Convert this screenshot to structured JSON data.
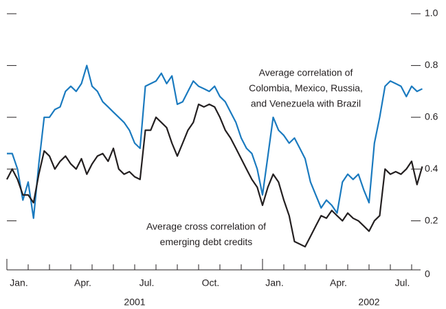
{
  "chart_data": {
    "type": "line",
    "x": [
      0,
      0.25,
      0.5,
      0.75,
      1,
      1.25,
      1.5,
      1.75,
      2,
      2.25,
      2.5,
      2.75,
      3,
      3.25,
      3.5,
      3.75,
      4,
      4.25,
      4.5,
      4.75,
      5,
      5.25,
      5.5,
      5.75,
      6,
      6.25,
      6.5,
      6.75,
      7,
      7.25,
      7.5,
      7.75,
      8,
      8.25,
      8.5,
      8.75,
      9,
      9.25,
      9.5,
      9.75,
      10,
      10.25,
      10.5,
      10.75,
      11,
      11.25,
      11.5,
      11.75,
      12,
      12.25,
      12.5,
      12.75,
      13,
      13.25,
      13.5,
      13.75,
      14,
      14.25,
      14.5,
      14.75,
      15,
      15.25,
      15.5,
      15.75,
      16,
      16.25,
      16.5,
      16.75,
      17,
      17.25,
      17.5,
      17.75,
      18,
      18.25,
      18.5,
      18.75,
      19,
      19.25,
      19.5
    ],
    "series": [
      {
        "color": "#1a7abf",
        "values": [
          0.46,
          0.46,
          0.4,
          0.28,
          0.35,
          0.21,
          0.42,
          0.6,
          0.6,
          0.63,
          0.64,
          0.7,
          0.72,
          0.7,
          0.73,
          0.8,
          0.72,
          0.7,
          0.66,
          0.64,
          0.62,
          0.6,
          0.58,
          0.55,
          0.5,
          0.48,
          0.72,
          0.73,
          0.74,
          0.77,
          0.73,
          0.76,
          0.65,
          0.66,
          0.7,
          0.74,
          0.72,
          0.71,
          0.7,
          0.72,
          0.68,
          0.66,
          0.62,
          0.58,
          0.52,
          0.48,
          0.46,
          0.4,
          0.3,
          0.45,
          0.6,
          0.55,
          0.53,
          0.5,
          0.52,
          0.48,
          0.44,
          0.35,
          0.3,
          0.25,
          0.28,
          0.26,
          0.23,
          0.35,
          0.38,
          0.36,
          0.38,
          0.32,
          0.27,
          0.5,
          0.6,
          0.72,
          0.74,
          0.73,
          0.72,
          0.68,
          0.72,
          0.7,
          0.71
        ]
      },
      {
        "color": "#231f20",
        "values": [
          0.36,
          0.4,
          0.36,
          0.3,
          0.3,
          0.27,
          0.38,
          0.47,
          0.45,
          0.4,
          0.43,
          0.45,
          0.42,
          0.4,
          0.44,
          0.38,
          0.42,
          0.45,
          0.46,
          0.43,
          0.48,
          0.4,
          0.38,
          0.39,
          0.37,
          0.36,
          0.55,
          0.55,
          0.6,
          0.58,
          0.56,
          0.5,
          0.45,
          0.5,
          0.55,
          0.58,
          0.65,
          0.64,
          0.65,
          0.64,
          0.6,
          0.55,
          0.52,
          0.48,
          0.44,
          0.4,
          0.36,
          0.33,
          0.26,
          0.33,
          0.38,
          0.35,
          0.28,
          0.22,
          0.12,
          0.11,
          0.1,
          0.14,
          0.18,
          0.22,
          0.21,
          0.24,
          0.22,
          0.2,
          0.23,
          0.21,
          0.2,
          0.18,
          0.16,
          0.2,
          0.22,
          0.4,
          0.38,
          0.39,
          0.38,
          0.4,
          0.43,
          0.34,
          0.41
        ]
      }
    ],
    "annotations": [
      {
        "lines": [
          "Average correlation of",
          "Colombia, Mexico, Russia,",
          "and Venezuela with Brazil"
        ]
      },
      {
        "lines": [
          "Average cross correlation of",
          "emerging debt credits"
        ]
      }
    ],
    "xlim": [
      0,
      19.5
    ],
    "xticks": [
      0,
      1,
      2,
      3,
      4,
      5,
      6,
      7,
      8,
      9,
      10,
      11,
      12,
      13,
      14,
      15,
      16,
      17,
      18,
      19
    ],
    "month_labels": [
      {
        "value": 0.5,
        "label": "Jan."
      },
      {
        "value": 3.5,
        "label": "Apr."
      },
      {
        "value": 6.5,
        "label": "Jul."
      },
      {
        "value": 9.5,
        "label": "Oct."
      },
      {
        "value": 12.5,
        "label": "Jan."
      },
      {
        "value": 15.5,
        "label": "Apr."
      },
      {
        "value": 18.5,
        "label": "Jul."
      }
    ],
    "year_labels": [
      {
        "value": 6,
        "label": "2001"
      },
      {
        "value": 17,
        "label": "2002"
      }
    ],
    "ylim": [
      0,
      1
    ],
    "yticks": [
      0,
      0.2,
      0.4,
      0.6,
      0.8,
      {
        "value": 1,
        "label": "1.0"
      }
    ]
  }
}
